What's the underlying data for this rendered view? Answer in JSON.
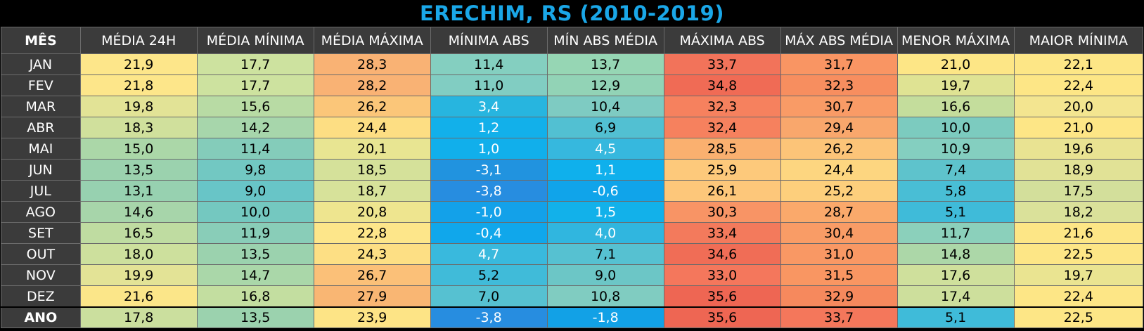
{
  "title": "ERECHIM, RS (2010-2019)",
  "headers": [
    "MÊS",
    "MÉDIA 24H",
    "MÉDIA MÍNIMA",
    "MÉDIA MÁXIMA",
    "MÍNIMA ABS",
    "MÍN ABS MÉDIA",
    "MÁXIMA ABS",
    "MÁX ABS MÉDIA",
    "MENOR MÁXIMA",
    "MAIOR MÍNIMA"
  ],
  "rows": [
    {
      "month": "JAN",
      "values": [
        "21,9",
        "17,7",
        "28,3",
        "11,4",
        "13,7",
        "33,7",
        "31,7",
        "21,0",
        "22,1"
      ],
      "colors": [
        "#fde68a",
        "#cde29f",
        "#f9b274",
        "#84cfc0",
        "#96d6b4",
        "#f2735a",
        "#f99563",
        "#fde686",
        "#fde686"
      ]
    },
    {
      "month": "FEV",
      "values": [
        "21,8",
        "17,7",
        "28,2",
        "11,0",
        "12,9",
        "34,8",
        "32,3",
        "19,7",
        "22,4"
      ],
      "colors": [
        "#fde68a",
        "#cde29f",
        "#f9b274",
        "#81cdc2",
        "#92d3b6",
        "#f06b55",
        "#f78e5f",
        "#dfe393",
        "#fde686"
      ]
    },
    {
      "month": "MAR",
      "values": [
        "19,8",
        "15,6",
        "26,2",
        "3,4",
        "10,4",
        "32,3",
        "30,7",
        "16,6",
        "20,0"
      ],
      "colors": [
        "#e2e396",
        "#b8dba4",
        "#fbc679",
        "#27b5df",
        "#7ecbc2",
        "#f6815e",
        "#f99b66",
        "#c4dd9c",
        "#f3e590"
      ]
    },
    {
      "month": "ABR",
      "values": [
        "18,3",
        "14,2",
        "24,4",
        "1,2",
        "6,9",
        "32,4",
        "29,4",
        "10,0",
        "21,0"
      ],
      "colors": [
        "#d0e09c",
        "#a7d6ab",
        "#fdde83",
        "#12b0ea",
        "#52c0d2",
        "#f6815e",
        "#f9a76c",
        "#7ccbbf",
        "#fde686"
      ]
    },
    {
      "month": "MAI",
      "values": [
        "15,0",
        "11,4",
        "20,1",
        "1,0",
        "4,5",
        "28,5",
        "26,2",
        "10,9",
        "19,6"
      ],
      "colors": [
        "#abd7a8",
        "#84ccba",
        "#e8e592",
        "#11afeb",
        "#36b8de",
        "#fab06f",
        "#fcc478",
        "#84cfc0",
        "#e9e392"
      ]
    },
    {
      "month": "JUN",
      "values": [
        "13,5",
        "9,8",
        "18,5",
        "-3,1",
        "1,1",
        "25,9",
        "24,4",
        "7,4",
        "18,9"
      ],
      "colors": [
        "#9bd2ae",
        "#72c8c2",
        "#d5e19a",
        "#2193df",
        "#0fb0ec",
        "#fdc97b",
        "#fdd680",
        "#5ec3cc",
        "#e1e296"
      ]
    },
    {
      "month": "JUL",
      "values": [
        "13,1",
        "9,0",
        "18,7",
        "-3,8",
        "-0,6",
        "26,1",
        "25,2",
        "5,8",
        "17,5"
      ],
      "colors": [
        "#97d1b0",
        "#68c5c7",
        "#d7e29a",
        "#278de0",
        "#10a4ea",
        "#fdc77a",
        "#fdcf7c",
        "#49bed5",
        "#d3df9b"
      ]
    },
    {
      "month": "AGO",
      "values": [
        "14,6",
        "10,0",
        "20,8",
        "-1,0",
        "1,5",
        "30,3",
        "28,7",
        "5,1",
        "18,2"
      ],
      "colors": [
        "#a7d5aa",
        "#74c8c0",
        "#eee58f",
        "#13a1e9",
        "#12b1ea",
        "#f89465",
        "#faa96b",
        "#3fbbd9",
        "#dae19a"
      ]
    },
    {
      "month": "SET",
      "values": [
        "16,5",
        "11,9",
        "22,8",
        "-0,4",
        "4,0",
        "33,4",
        "30,4",
        "11,7",
        "21,6"
      ],
      "colors": [
        "#bfdca1",
        "#89cdb8",
        "#fde68a",
        "#10a7eb",
        "#30b6df",
        "#f37a5c",
        "#f99c66",
        "#8bd0bb",
        "#fde686"
      ]
    },
    {
      "month": "OUT",
      "values": [
        "18,0",
        "13,5",
        "24,3",
        "4,7",
        "7,1",
        "34,6",
        "31,0",
        "14,8",
        "22,5"
      ],
      "colors": [
        "#cde09d",
        "#9bd2ae",
        "#fddf84",
        "#39b9dd",
        "#56c1d1",
        "#f06d56",
        "#f99864",
        "#acd7a8",
        "#fde686"
      ]
    },
    {
      "month": "NOV",
      "values": [
        "19,9",
        "14,7",
        "26,7",
        "5,2",
        "9,0",
        "33,0",
        "31,5",
        "17,6",
        "19,7"
      ],
      "colors": [
        "#e3e396",
        "#aad7a9",
        "#fbc078",
        "#40bbd9",
        "#6cc6c6",
        "#f4775c",
        "#f99662",
        "#cfe09c",
        "#eae491"
      ]
    },
    {
      "month": "DEZ",
      "values": [
        "21,6",
        "16,8",
        "27,9",
        "7,0",
        "10,8",
        "35,6",
        "32,9",
        "17,4",
        "22,4"
      ],
      "colors": [
        "#fbe689",
        "#c3dea0",
        "#f9b673",
        "#56c1d1",
        "#80ccc1",
        "#ee6653",
        "#f6895d",
        "#cddf9c",
        "#fde686"
      ]
    }
  ],
  "total": {
    "month": "ANO",
    "values": [
      "17,8",
      "13,5",
      "23,9",
      "-3,8",
      "-1,8",
      "35,6",
      "33,7",
      "5,1",
      "22,5"
    ],
    "colors": [
      "#cbdf9e",
      "#9bd2ae",
      "#fde486",
      "#278de0",
      "#12a1e6",
      "#ee6653",
      "#f4775b",
      "#3fbbd9",
      "#fde686"
    ]
  }
}
